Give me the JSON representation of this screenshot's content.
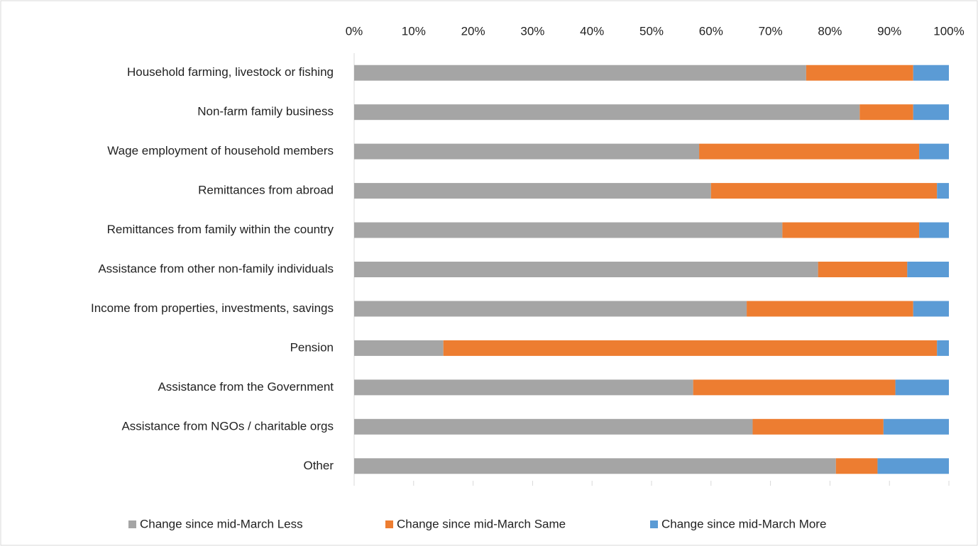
{
  "chart_data": {
    "type": "stacked-bar-horizontal",
    "categories": [
      "Household farming, livestock or fishing",
      "Non-farm family business",
      "Wage employment of household members",
      "Remittances from abroad",
      "Remittances from family within the country",
      "Assistance from other non-family individuals",
      "Income from properties, investments, savings",
      "Pension",
      "Assistance from the Government",
      "Assistance from NGOs / charitable orgs",
      "Other"
    ],
    "series": [
      {
        "name": "Change since mid-March Less",
        "color": "#a5a5a5",
        "values": [
          76,
          85,
          58,
          60,
          72,
          78,
          66,
          15,
          57,
          67,
          81
        ]
      },
      {
        "name": "Change since mid-March Same",
        "color": "#ed7d31",
        "values": [
          18,
          9,
          37,
          38,
          23,
          15,
          28,
          83,
          34,
          22,
          7
        ]
      },
      {
        "name": "Change since mid-March More",
        "color": "#5b9bd5",
        "values": [
          6,
          6,
          5,
          2,
          5,
          7,
          6,
          2,
          9,
          11,
          12
        ]
      }
    ],
    "xlim": [
      0,
      100
    ],
    "xticks": [
      {
        "value": 0,
        "label": "0%"
      },
      {
        "value": 10,
        "label": "10%"
      },
      {
        "value": 20,
        "label": "20%"
      },
      {
        "value": 30,
        "label": "30%"
      },
      {
        "value": 40,
        "label": "40%"
      },
      {
        "value": 50,
        "label": "50%"
      },
      {
        "value": 60,
        "label": "60%"
      },
      {
        "value": 70,
        "label": "70%"
      },
      {
        "value": 80,
        "label": "80%"
      },
      {
        "value": 90,
        "label": "90%"
      },
      {
        "value": 100,
        "label": "100%"
      }
    ],
    "legend": "bottom"
  }
}
